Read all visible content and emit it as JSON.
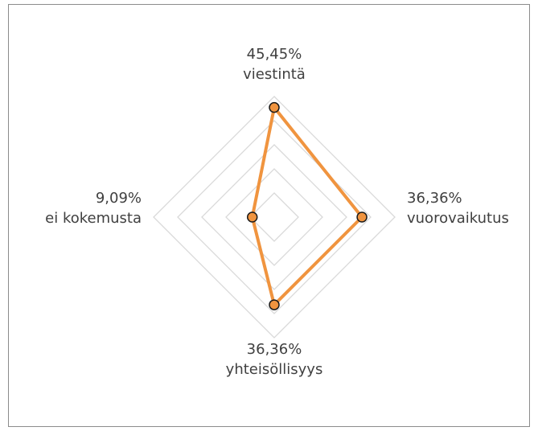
{
  "chart_data": {
    "type": "radar",
    "categories": [
      "viestintä",
      "vuorovaikutus",
      "yhteisöllisyys",
      "ei kokemusta"
    ],
    "values": [
      45.45,
      36.36,
      36.36,
      9.09
    ],
    "value_labels": [
      "45,45%",
      "36,36%",
      "36,36%",
      "9,09%"
    ],
    "color": "#f0943f",
    "ylim": [
      0,
      50
    ],
    "yticks": [
      10,
      20,
      30,
      40,
      50
    ],
    "grid": true
  }
}
